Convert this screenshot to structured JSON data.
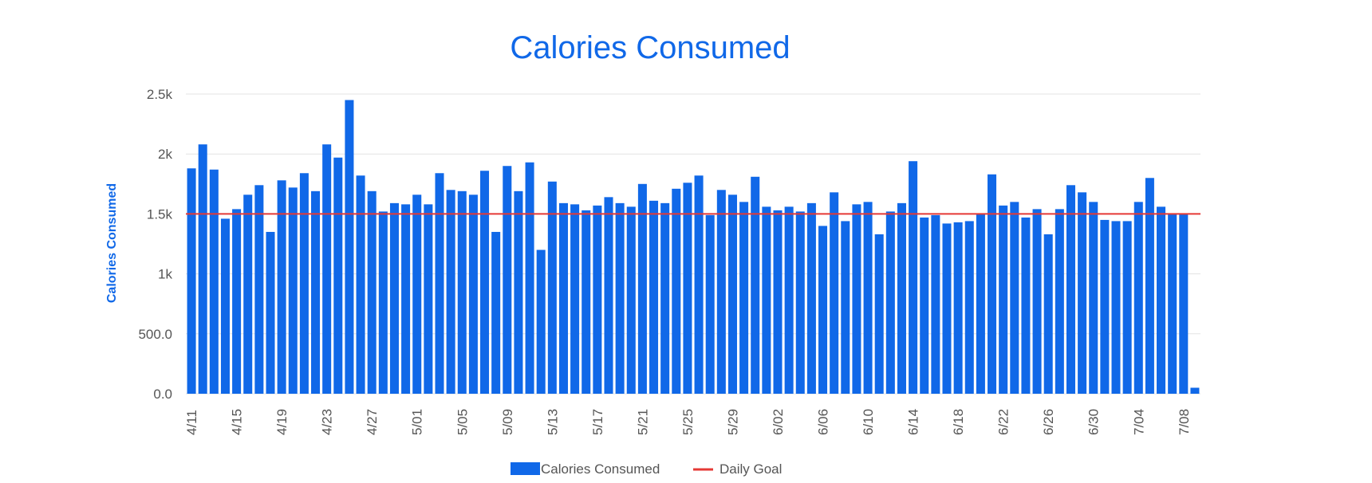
{
  "chart_data": {
    "type": "bar",
    "title": "Calories Consumed",
    "ylabel": "Calories Consumed",
    "xlabel": "",
    "ylim": [
      0,
      2500
    ],
    "y_ticks": [
      {
        "value": 0,
        "label": "0.0"
      },
      {
        "value": 500,
        "label": "500.0"
      },
      {
        "value": 1000,
        "label": "1k"
      },
      {
        "value": 1500,
        "label": "1.5k"
      },
      {
        "value": 2000,
        "label": "2k"
      },
      {
        "value": 2500,
        "label": "2.5k"
      }
    ],
    "grid": true,
    "legend_position": "bottom",
    "x_tick_labels": [
      "4/11",
      "4/15",
      "4/19",
      "4/23",
      "4/27",
      "5/01",
      "5/05",
      "5/09",
      "5/13",
      "5/17",
      "5/21",
      "5/25",
      "5/29",
      "6/02",
      "6/06",
      "6/10",
      "6/14",
      "6/18",
      "6/22",
      "6/26",
      "6/30",
      "7/04",
      "7/08"
    ],
    "categories": [
      "4/11",
      "4/12",
      "4/13",
      "4/14",
      "4/15",
      "4/16",
      "4/17",
      "4/18",
      "4/19",
      "4/20",
      "4/21",
      "4/22",
      "4/23",
      "4/24",
      "4/25",
      "4/26",
      "4/27",
      "4/28",
      "4/29",
      "4/30",
      "5/01",
      "5/02",
      "5/03",
      "5/04",
      "5/05",
      "5/06",
      "5/07",
      "5/08",
      "5/09",
      "5/10",
      "5/11",
      "5/12",
      "5/13",
      "5/14",
      "5/15",
      "5/16",
      "5/17",
      "5/18",
      "5/19",
      "5/20",
      "5/21",
      "5/22",
      "5/23",
      "5/24",
      "5/25",
      "5/26",
      "5/27",
      "5/28",
      "5/29",
      "5/30",
      "5/31",
      "6/01",
      "6/02",
      "6/03",
      "6/04",
      "6/05",
      "6/06",
      "6/07",
      "6/08",
      "6/09",
      "6/10",
      "6/11",
      "6/12",
      "6/13",
      "6/14",
      "6/15",
      "6/16",
      "6/17",
      "6/18",
      "6/19",
      "6/20",
      "6/21",
      "6/22",
      "6/23",
      "6/24",
      "6/25",
      "6/26",
      "6/27",
      "6/28",
      "6/29",
      "6/30",
      "7/01",
      "7/02",
      "7/03",
      "7/04",
      "7/05",
      "7/06",
      "7/07",
      "7/08",
      "7/09"
    ],
    "series": [
      {
        "name": "Calories Consumed",
        "type": "bar",
        "color": "#1068e8",
        "values": [
          1880,
          2080,
          1870,
          1460,
          1540,
          1660,
          1740,
          1350,
          1780,
          1720,
          1840,
          1690,
          2080,
          1970,
          2450,
          1820,
          1690,
          1520,
          1590,
          1580,
          1660,
          1580,
          1840,
          1700,
          1690,
          1660,
          1860,
          1350,
          1900,
          1690,
          1930,
          1200,
          1770,
          1590,
          1580,
          1530,
          1570,
          1640,
          1590,
          1560,
          1750,
          1610,
          1590,
          1710,
          1760,
          1820,
          1490,
          1700,
          1660,
          1600,
          1810,
          1560,
          1530,
          1560,
          1520,
          1590,
          1400,
          1680,
          1440,
          1580,
          1600,
          1330,
          1520,
          1590,
          1940,
          1470,
          1490,
          1420,
          1430,
          1440,
          1500,
          1830,
          1570,
          1600,
          1470,
          1540,
          1330,
          1540,
          1740,
          1680,
          1600,
          1450,
          1440,
          1440,
          1600,
          1800,
          1560,
          1500,
          1500,
          50
        ]
      },
      {
        "name": "Daily Goal",
        "type": "line",
        "color": "#e53935",
        "value": 1500
      }
    ]
  }
}
